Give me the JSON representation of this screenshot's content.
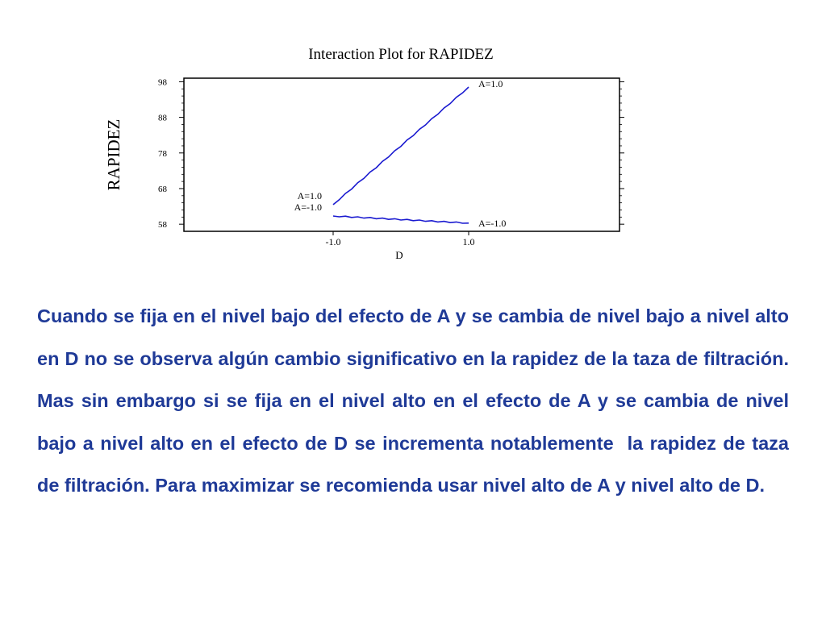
{
  "chart_data": {
    "type": "line",
    "title": "Interaction Plot for RAPIDEZ",
    "xlabel": "D",
    "ylabel": "RAPIDEZ",
    "categories": [
      "-1.0",
      "1.0"
    ],
    "y_ticks": [
      "98",
      "88",
      "78",
      "68",
      "58"
    ],
    "ylim": [
      56,
      99
    ],
    "grid": false,
    "line_color": "#1a1ad0",
    "series": [
      {
        "name": "A=1.0",
        "values": [
          63.5,
          96.5
        ],
        "label_left": "A=1.0",
        "label_right": "A=1.0"
      },
      {
        "name": "A=-1.0",
        "values": [
          60.3,
          58.3
        ],
        "label_left": "A=-1.0",
        "label_right": "A=-1.0"
      }
    ]
  },
  "paragraph": {
    "text": "Cuando se fija en el nivel bajo del efecto de A y se cambia de nivel bajo a nivel alto en D no se observa algún cambio significativo en la rapidez de la taza de filtración. Mas sin embargo si se fija en el nivel alto en el efecto de A y se cambia de nivel bajo a nivel alto en el efecto de D se incrementa notablemente  la rapidez de taza de filtración. Para maximizar se recomienda usar nivel alto de A y nivel alto de D.",
    "color": "#1f3a97"
  }
}
